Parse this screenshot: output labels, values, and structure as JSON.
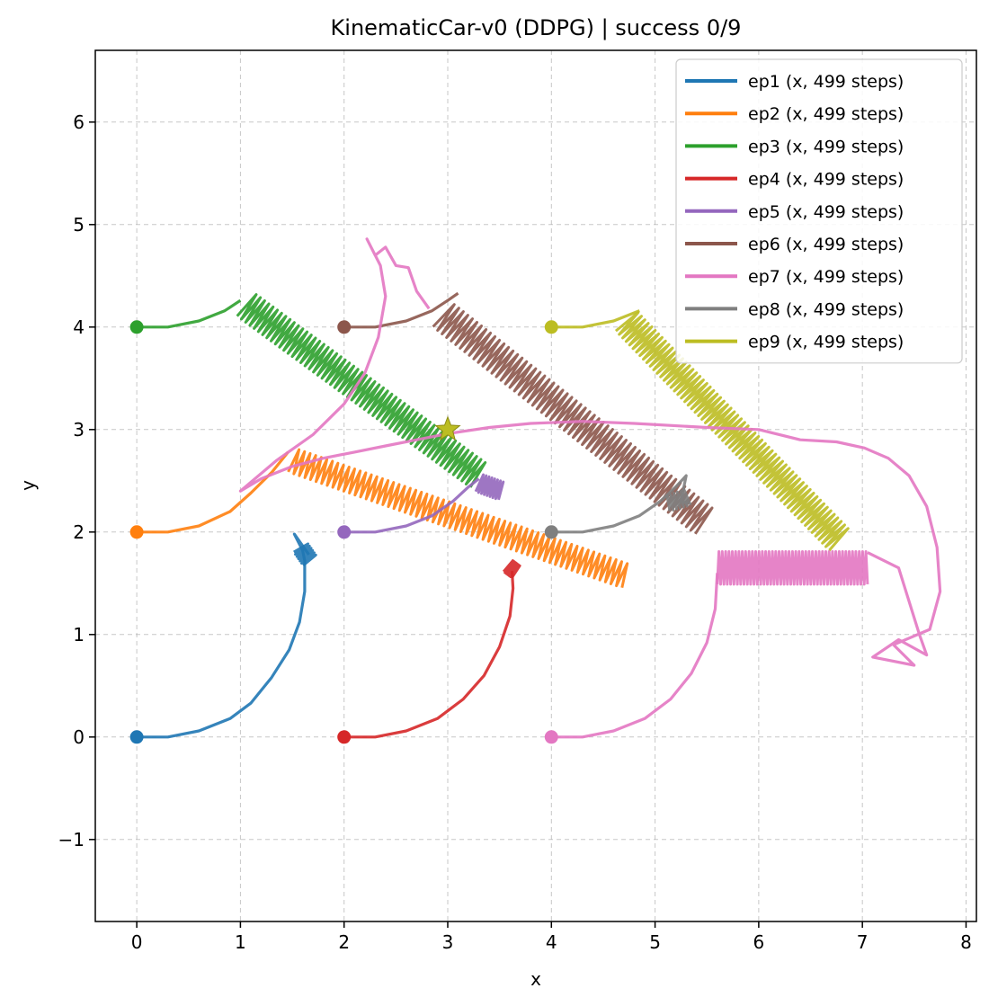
{
  "chart_data": {
    "type": "line",
    "title": "KinematicCar-v0 (DDPG) | success 0/9",
    "xlabel": "x",
    "ylabel": "y",
    "xlim": [
      -0.4,
      8.1
    ],
    "ylim": [
      -1.8,
      6.7
    ],
    "xticks": [
      0,
      1,
      2,
      3,
      4,
      5,
      6,
      7,
      8
    ],
    "yticks": [
      -1,
      0,
      1,
      2,
      3,
      4,
      5,
      6
    ],
    "grid": true,
    "legend_position": "top-right",
    "goal": {
      "x": 3.0,
      "y": 3.0,
      "marker": "star",
      "color": "#bcbd22"
    },
    "series": [
      {
        "name": "ep1 (x, 499 steps)",
        "color": "#1f77b4",
        "start": [
          0,
          0
        ],
        "path": [
          [
            0,
            0
          ],
          [
            0.3,
            0
          ],
          [
            0.6,
            0.06
          ],
          [
            0.9,
            0.18
          ],
          [
            1.1,
            0.33
          ],
          [
            1.3,
            0.58
          ],
          [
            1.47,
            0.85
          ],
          [
            1.57,
            1.12
          ],
          [
            1.62,
            1.42
          ],
          [
            1.62,
            1.72
          ],
          [
            1.6,
            1.82
          ],
          [
            1.52,
            1.98
          ],
          [
            1.66,
            1.78
          ]
        ],
        "oscillation": {
          "from": [
            1.58,
            1.85
          ],
          "to": [
            1.67,
            1.72
          ],
          "amplitude": 0.08,
          "cycles": 6
        }
      },
      {
        "name": "ep2 (x, 499 steps)",
        "color": "#ff7f0e",
        "start": [
          0,
          2
        ],
        "path": [
          [
            0,
            2
          ],
          [
            0.3,
            2.0
          ],
          [
            0.6,
            2.06
          ],
          [
            0.9,
            2.2
          ],
          [
            1.1,
            2.38
          ],
          [
            1.3,
            2.58
          ],
          [
            1.46,
            2.78
          ]
        ],
        "oscillation": {
          "from": [
            1.5,
            2.7
          ],
          "to": [
            4.72,
            1.57
          ],
          "amplitude": 0.12,
          "cycles": 60
        }
      },
      {
        "name": "ep3 (x, 499 steps)",
        "color": "#2ca02c",
        "start": [
          0,
          4
        ],
        "path": [
          [
            0,
            4
          ],
          [
            0.3,
            4.0
          ],
          [
            0.6,
            4.06
          ],
          [
            0.85,
            4.16
          ],
          [
            1.0,
            4.26
          ]
        ],
        "oscillation": {
          "from": [
            1.05,
            4.22
          ],
          "to": [
            3.3,
            2.55
          ],
          "amplitude": 0.14,
          "cycles": 55
        }
      },
      {
        "name": "ep4 (x, 499 steps)",
        "color": "#d62728",
        "start": [
          2,
          0
        ],
        "path": [
          [
            2,
            0
          ],
          [
            2.3,
            0
          ],
          [
            2.6,
            0.06
          ],
          [
            2.9,
            0.18
          ],
          [
            3.15,
            0.37
          ],
          [
            3.35,
            0.6
          ],
          [
            3.5,
            0.88
          ],
          [
            3.6,
            1.18
          ],
          [
            3.63,
            1.45
          ],
          [
            3.62,
            1.62
          ]
        ],
        "oscillation": {
          "from": [
            3.58,
            1.67
          ],
          "to": [
            3.66,
            1.61
          ],
          "amplitude": 0.07,
          "cycles": 6
        }
      },
      {
        "name": "ep5 (x, 499 steps)",
        "color": "#9467bd",
        "start": [
          2,
          2
        ],
        "path": [
          [
            2,
            2
          ],
          [
            2.3,
            2.0
          ],
          [
            2.6,
            2.06
          ],
          [
            2.85,
            2.16
          ],
          [
            3.05,
            2.3
          ],
          [
            3.2,
            2.44
          ],
          [
            3.3,
            2.52
          ]
        ],
        "oscillation": {
          "from": [
            3.3,
            2.48
          ],
          "to": [
            3.52,
            2.4
          ],
          "amplitude": 0.09,
          "cycles": 8
        }
      },
      {
        "name": "ep6 (x, 499 steps)",
        "color": "#8c564b",
        "start": [
          2,
          4
        ],
        "path": [
          [
            2,
            4
          ],
          [
            2.3,
            4.0
          ],
          [
            2.6,
            4.06
          ],
          [
            2.85,
            4.16
          ],
          [
            3.0,
            4.26
          ],
          [
            3.1,
            4.33
          ]
        ],
        "oscillation": {
          "from": [
            2.95,
            4.12
          ],
          "to": [
            5.48,
            2.1
          ],
          "amplitude": 0.15,
          "cycles": 58
        }
      },
      {
        "name": "ep7 (x, 499 steps)",
        "color": "#e377c2",
        "start": [
          4,
          0
        ],
        "path": [
          [
            4,
            0
          ],
          [
            4.3,
            0
          ],
          [
            4.6,
            0.06
          ],
          [
            4.9,
            0.18
          ],
          [
            5.15,
            0.37
          ],
          [
            5.35,
            0.62
          ],
          [
            5.5,
            0.92
          ],
          [
            5.58,
            1.25
          ],
          [
            5.6,
            1.6
          ]
        ],
        "oscillation": {
          "from": [
            5.6,
            1.65
          ],
          "to": [
            7.05,
            1.65
          ],
          "amplitude": 0.16,
          "cycles": 45
        }
      },
      {
        "name": "ep8 (x, 499 steps)",
        "color": "#7f7f7f",
        "start": [
          4,
          2
        ],
        "path": [
          [
            4,
            2
          ],
          [
            4.3,
            2.0
          ],
          [
            4.6,
            2.06
          ],
          [
            4.85,
            2.16
          ],
          [
            5.05,
            2.3
          ],
          [
            5.2,
            2.44
          ],
          [
            5.3,
            2.55
          ],
          [
            5.25,
            2.3
          ],
          [
            5.32,
            2.28
          ]
        ],
        "oscillation": {
          "from": [
            5.12,
            2.28
          ],
          "to": [
            5.32,
            2.34
          ],
          "amplitude": 0.08,
          "cycles": 6
        }
      },
      {
        "name": "ep9 (x, 499 steps)",
        "color": "#bcbd22",
        "start": [
          4,
          4
        ],
        "path": [
          [
            4,
            4
          ],
          [
            4.3,
            4.0
          ],
          [
            4.6,
            4.06
          ],
          [
            4.85,
            4.16
          ]
        ],
        "oscillation": {
          "from": [
            4.72,
            4.06
          ],
          "to": [
            6.78,
            1.92
          ],
          "amplitude": 0.14,
          "cycles": 62
        }
      }
    ],
    "extra_paths": [
      {
        "series": "ep7 (x, 499 steps)",
        "color": "#e377c2",
        "path": [
          [
            7.05,
            1.8
          ],
          [
            7.35,
            1.65
          ],
          [
            7.55,
            1.0
          ],
          [
            7.62,
            0.8
          ],
          [
            7.35,
            0.95
          ],
          [
            7.1,
            0.78
          ],
          [
            7.5,
            0.7
          ],
          [
            7.3,
            0.9
          ],
          [
            7.65,
            1.05
          ],
          [
            7.75,
            1.42
          ],
          [
            7.72,
            1.85
          ],
          [
            7.62,
            2.25
          ],
          [
            7.45,
            2.55
          ],
          [
            7.25,
            2.72
          ],
          [
            7.02,
            2.82
          ],
          [
            6.75,
            2.88
          ],
          [
            6.4,
            2.9
          ],
          [
            6.0,
            3.0
          ],
          [
            5.5,
            3.02
          ],
          [
            4.8,
            3.06
          ],
          [
            4.3,
            3.08
          ],
          [
            3.8,
            3.06
          ],
          [
            3.4,
            3.02
          ],
          [
            3.0,
            2.96
          ],
          [
            2.7,
            2.9
          ],
          [
            2.4,
            2.84
          ],
          [
            2.1,
            2.78
          ],
          [
            1.8,
            2.72
          ],
          [
            1.5,
            2.64
          ],
          [
            1.2,
            2.52
          ],
          [
            1.0,
            2.4
          ],
          [
            1.35,
            2.7
          ],
          [
            1.7,
            2.95
          ],
          [
            2.0,
            3.25
          ],
          [
            2.2,
            3.55
          ],
          [
            2.33,
            3.9
          ],
          [
            2.4,
            4.3
          ],
          [
            2.35,
            4.6
          ],
          [
            2.22,
            4.86
          ],
          [
            2.3,
            4.7
          ],
          [
            2.4,
            4.78
          ],
          [
            2.5,
            4.6
          ],
          [
            2.62,
            4.58
          ],
          [
            2.7,
            4.35
          ],
          [
            2.82,
            4.18
          ]
        ]
      }
    ]
  }
}
